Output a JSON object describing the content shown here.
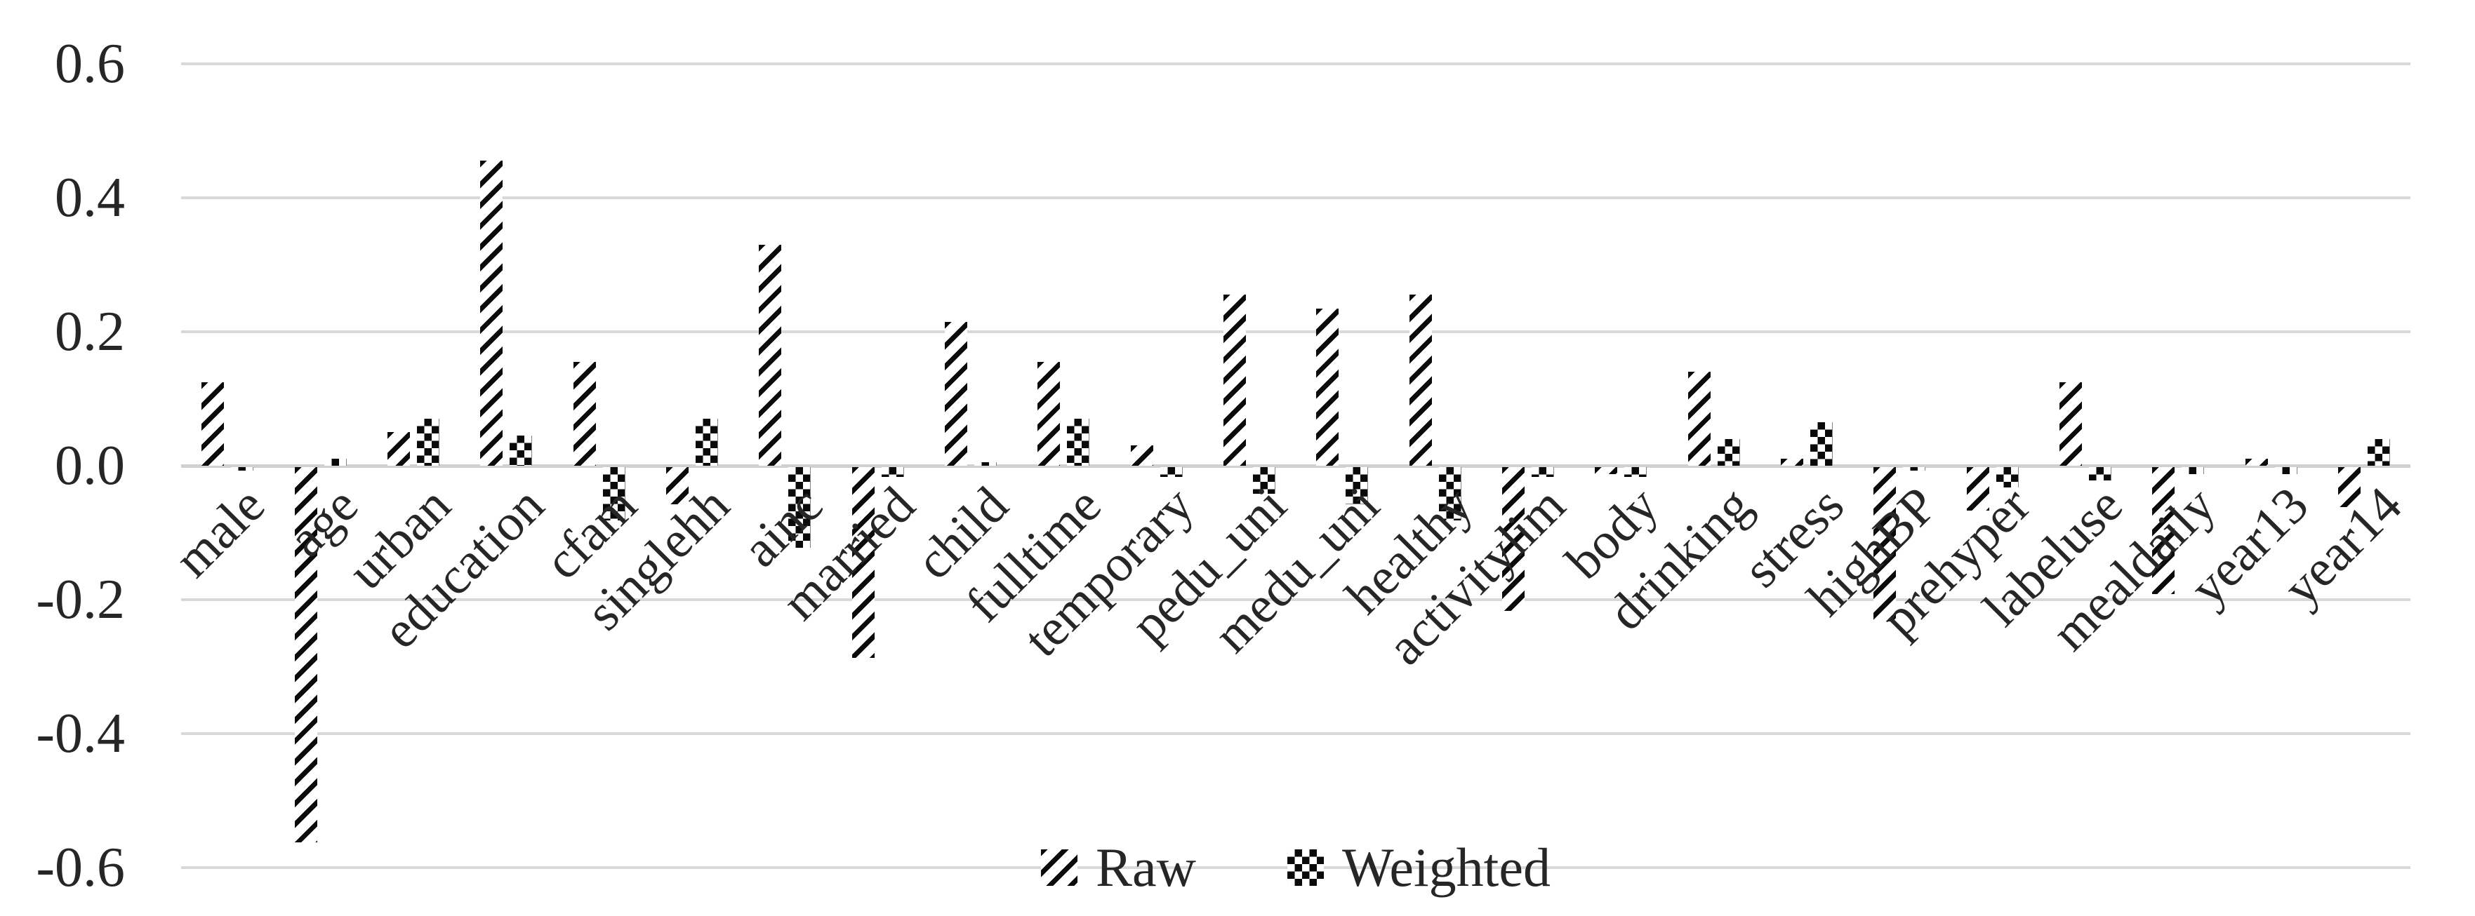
{
  "chart_data": {
    "type": "bar",
    "title": "",
    "xlabel": "",
    "ylabel": "",
    "categories": [
      "male",
      "age",
      "urban",
      "education",
      "cfam",
      "singlehh",
      "ainc",
      "married",
      "child",
      "fulltime",
      "temporary",
      "pedu_uni",
      "medu_uni",
      "healthy",
      "activitylim",
      "body",
      "drinking",
      "stress",
      "highBP",
      "prehyper",
      "labeluse",
      "mealdaily",
      "year13",
      "year14"
    ],
    "series": [
      {
        "name": "Raw",
        "pattern": "diagonal-hatch",
        "values": [
          0.125,
          -0.56,
          0.05,
          0.455,
          0.155,
          -0.055,
          0.33,
          -0.285,
          0.215,
          0.155,
          0.03,
          0.255,
          0.235,
          0.255,
          -0.215,
          -0.01,
          0.14,
          0.01,
          -0.23,
          -0.065,
          0.125,
          -0.19,
          0.01,
          -0.06
        ]
      },
      {
        "name": "Weighted",
        "pattern": "checkerboard",
        "values": [
          -0.005,
          0.01,
          0.07,
          0.045,
          -0.08,
          0.07,
          -0.12,
          -0.015,
          0.005,
          0.07,
          -0.015,
          -0.04,
          -0.055,
          -0.08,
          -0.015,
          -0.015,
          0.04,
          0.065,
          -0.005,
          -0.03,
          -0.02,
          -0.01,
          -0.01,
          0.04
        ]
      }
    ],
    "ylim": [
      -0.6,
      0.6
    ],
    "ytick_step": 0.2,
    "yticks": [
      "0.6",
      "0.4",
      "0.2",
      "0.0",
      "-0.2",
      "-0.4",
      "-0.6"
    ],
    "ytick_values": [
      0.6,
      0.4,
      0.2,
      0.0,
      -0.2,
      -0.4,
      -0.6
    ],
    "grid": true,
    "legend_position": "bottom-center",
    "x_label_rotation_deg": 45,
    "colors": {
      "bar_ink": "#0a0a0a",
      "background": "#ffffff",
      "gridline": "#d9d9d9",
      "axis_line": "#d0d0d0",
      "text": "#262626"
    }
  }
}
